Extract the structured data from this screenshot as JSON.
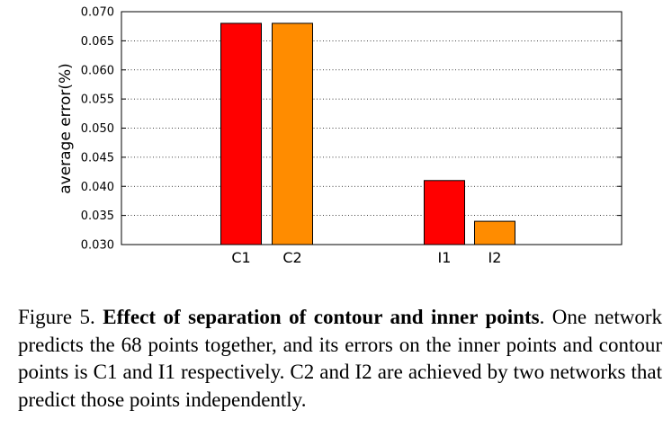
{
  "chart_data": {
    "type": "bar",
    "categories": [
      "C1",
      "C2",
      "I1",
      "I2"
    ],
    "values": [
      0.068,
      0.068,
      0.041,
      0.034
    ],
    "bar_colors": [
      "#ff0000",
      "#ff8c00",
      "#ff0000",
      "#ff8c00"
    ],
    "ylabel": "average error(%)",
    "xlabel": "",
    "ylim": [
      0.03,
      0.07
    ],
    "yticks": [
      "0.030",
      "0.035",
      "0.040",
      "0.045",
      "0.050",
      "0.055",
      "0.060",
      "0.065",
      "0.070"
    ],
    "grid": "horizontal dotted"
  },
  "caption": {
    "label": "Figure 5.",
    "bold_title": "Effect of separation of contour and inner points",
    "text": ". One network predicts the 68 points together, and its errors on the inner points and contour points is C1 and I1 respectively. C2 and I2 are achieved by two networks that predict those points independently."
  }
}
